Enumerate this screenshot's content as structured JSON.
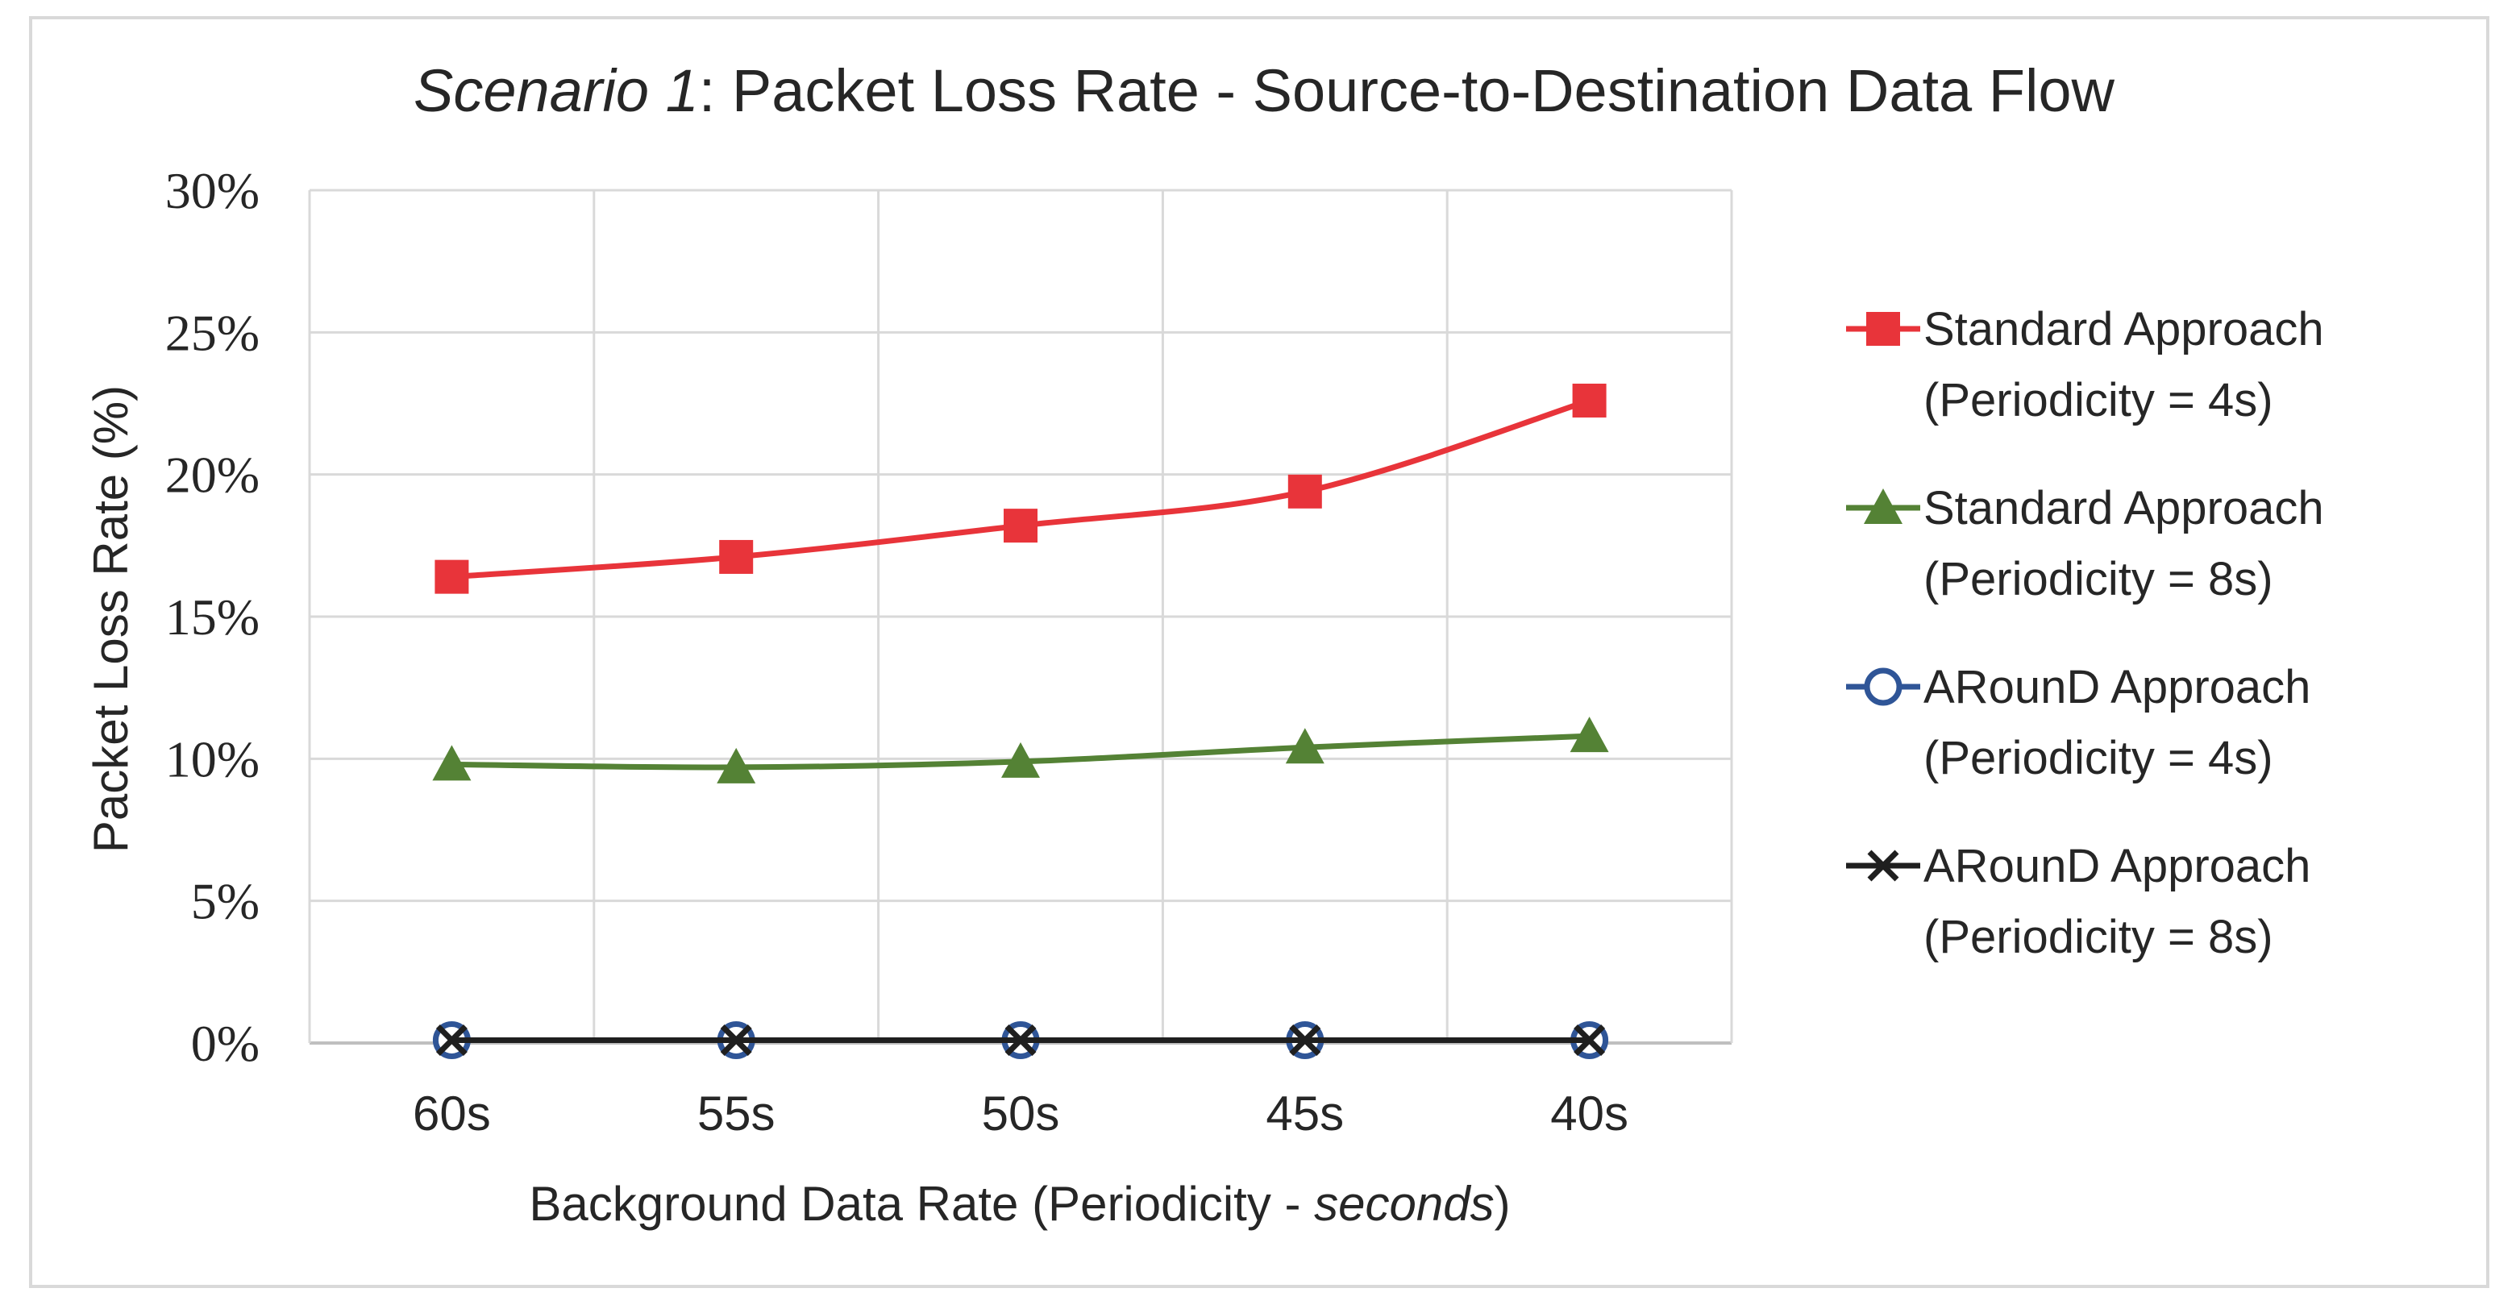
{
  "chart_data": {
    "type": "line",
    "title_italic": "Scenario 1",
    "title_rest": ": Packet Loss Rate - Source-to-Destination Data Flow",
    "xlabel_plain": "Background  Data Rate (Periodicity  - ",
    "xlabel_italic": "seconds",
    "xlabel_close": ")",
    "ylabel": "Packet Loss Rate (%)",
    "categories": [
      "60s",
      "55s",
      "50s",
      "45s",
      "40s"
    ],
    "ylim": [
      0,
      30
    ],
    "yticks": [
      0,
      5,
      10,
      15,
      20,
      25,
      30
    ],
    "ytick_labels": [
      "0%",
      "5%",
      "10%",
      "15%",
      "20%",
      "25%",
      "30%"
    ],
    "grid": true,
    "legend_position": "right",
    "series": [
      {
        "name_line1": "Standard Approach",
        "name_line2": "(Periodicity = 4s)",
        "marker": "square",
        "color": "#e8343a",
        "values": [
          16.4,
          17.1,
          18.2,
          19.4,
          22.6
        ]
      },
      {
        "name_line1": "Standard Approach",
        "name_line2": "(Periodicity = 8s)",
        "marker": "triangle",
        "color": "#548235",
        "values": [
          9.8,
          9.7,
          9.9,
          10.4,
          10.8
        ]
      },
      {
        "name_line1": "ARounD Approach",
        "name_line2": "(Periodicity = 4s)",
        "marker": "circle",
        "color": "#2f5597",
        "values": [
          0.1,
          0.1,
          0.1,
          0.1,
          0.1
        ]
      },
      {
        "name_line1": "ARounD Approach",
        "name_line2": "(Periodicity = 8s)",
        "marker": "x",
        "color": "#1f1f1f",
        "values": [
          0.1,
          0.1,
          0.1,
          0.1,
          0.1
        ]
      }
    ]
  }
}
